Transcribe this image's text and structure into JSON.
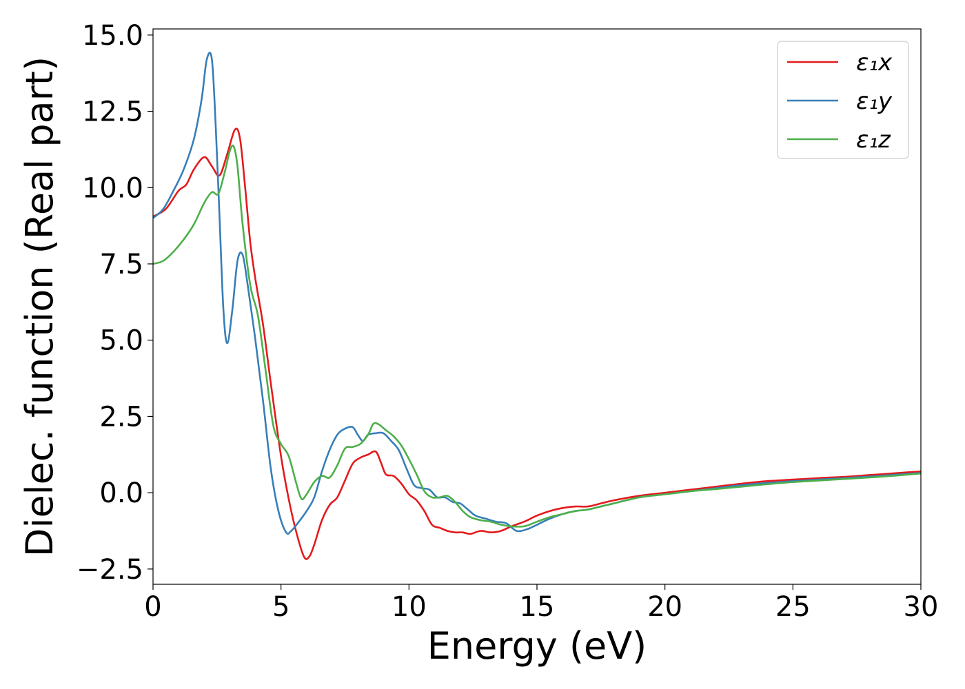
{
  "colors": {
    "x": "#e41a1c",
    "y": "#377eb8",
    "z": "#4daf4a"
  },
  "chart_data": {
    "type": "line",
    "xlabel": "Energy (eV)",
    "ylabel": "Dielec. function (Real part)",
    "xlim": [
      0,
      30
    ],
    "ylim": [
      -3.0,
      15.2
    ],
    "xticks": [
      0,
      5,
      10,
      15,
      20,
      25,
      30
    ],
    "xtick_labels": [
      "0",
      "5",
      "10",
      "15",
      "20",
      "25",
      "30"
    ],
    "yticks": [
      -2.5,
      0.0,
      2.5,
      5.0,
      7.5,
      10.0,
      12.5,
      15.0
    ],
    "ytick_labels": [
      "−2.5",
      "0.0",
      "2.5",
      "5.0",
      "7.5",
      "10.0",
      "12.5",
      "15.0"
    ],
    "grid": false,
    "legend_position": "top-right",
    "series": [
      {
        "name": "ε₁x",
        "color": "#e41a1c",
        "x": [
          0,
          0.5,
          1.0,
          1.3,
          1.6,
          2.0,
          2.3,
          2.6,
          2.9,
          3.2,
          3.4,
          3.6,
          3.8,
          4.0,
          4.3,
          4.6,
          5.0,
          5.3,
          5.6,
          5.9,
          6.1,
          6.3,
          6.6,
          6.9,
          7.2,
          7.5,
          7.8,
          8.1,
          8.4,
          8.7,
          8.9,
          9.1,
          9.4,
          9.7,
          10.0,
          10.3,
          10.6,
          10.9,
          11.2,
          11.5,
          11.8,
          12.1,
          12.4,
          12.8,
          13.2,
          13.6,
          14.0,
          14.5,
          15.0,
          15.5,
          16.0,
          16.5,
          17.0,
          17.5,
          18.0,
          19.0,
          20.0,
          21.0,
          22.0,
          23.0,
          24.0,
          25.0,
          26.0,
          27.0,
          28.0,
          29.0,
          30.0
        ],
        "y": [
          9.05,
          9.3,
          9.9,
          10.1,
          10.6,
          11.0,
          10.7,
          10.4,
          11.1,
          11.9,
          11.6,
          10.0,
          8.2,
          7.0,
          5.5,
          3.6,
          1.2,
          -0.2,
          -1.3,
          -2.1,
          -2.1,
          -1.7,
          -0.9,
          -0.4,
          -0.15,
          0.4,
          0.95,
          1.15,
          1.25,
          1.35,
          1.0,
          0.6,
          0.55,
          0.3,
          -0.05,
          -0.25,
          -0.6,
          -1.05,
          -1.15,
          -1.25,
          -1.3,
          -1.3,
          -1.35,
          -1.25,
          -1.3,
          -1.25,
          -1.1,
          -0.95,
          -0.75,
          -0.6,
          -0.5,
          -0.45,
          -0.45,
          -0.35,
          -0.25,
          -0.1,
          0.0,
          0.1,
          0.2,
          0.3,
          0.38,
          0.43,
          0.48,
          0.52,
          0.58,
          0.64,
          0.7
        ]
      },
      {
        "name": "ε₁y",
        "color": "#377eb8",
        "x": [
          0,
          0.4,
          0.8,
          1.2,
          1.6,
          1.9,
          2.1,
          2.3,
          2.45,
          2.6,
          2.75,
          2.9,
          3.1,
          3.3,
          3.5,
          3.7,
          4.0,
          4.3,
          4.6,
          4.9,
          5.2,
          5.4,
          5.7,
          6.0,
          6.3,
          6.6,
          6.9,
          7.2,
          7.5,
          7.8,
          8.0,
          8.2,
          8.4,
          8.7,
          9.0,
          9.3,
          9.6,
          9.9,
          10.2,
          10.5,
          10.8,
          11.1,
          11.4,
          11.7,
          12.0,
          12.3,
          12.6,
          13.0,
          13.4,
          13.8,
          14.2,
          14.6,
          15.0,
          15.5,
          16.0,
          16.5,
          17.0,
          17.5,
          18.0,
          19.0,
          20.0,
          21.0,
          22.0,
          23.0,
          24.0,
          25.0,
          26.0,
          27.0,
          28.0,
          29.0,
          30.0
        ],
        "y": [
          9.0,
          9.3,
          9.9,
          10.6,
          11.6,
          12.9,
          14.2,
          14.2,
          12.0,
          9.0,
          6.0,
          4.9,
          6.0,
          7.6,
          7.8,
          6.8,
          5.0,
          3.0,
          0.8,
          -0.6,
          -1.3,
          -1.25,
          -0.95,
          -0.6,
          -0.15,
          0.7,
          1.4,
          1.9,
          2.1,
          2.15,
          1.9,
          1.7,
          1.9,
          1.95,
          1.95,
          1.7,
          1.4,
          0.8,
          0.25,
          0.15,
          0.1,
          -0.15,
          -0.15,
          -0.3,
          -0.35,
          -0.55,
          -0.75,
          -0.85,
          -0.95,
          -1.0,
          -1.25,
          -1.2,
          -1.05,
          -0.85,
          -0.7,
          -0.6,
          -0.55,
          -0.45,
          -0.35,
          -0.15,
          -0.05,
          0.05,
          0.15,
          0.25,
          0.32,
          0.38,
          0.43,
          0.48,
          0.53,
          0.59,
          0.65
        ]
      },
      {
        "name": "ε₁z",
        "color": "#4daf4a",
        "x": [
          0,
          0.4,
          0.8,
          1.2,
          1.6,
          2.0,
          2.3,
          2.55,
          2.8,
          3.0,
          3.15,
          3.3,
          3.5,
          3.8,
          4.1,
          4.4,
          4.7,
          5.0,
          5.3,
          5.6,
          5.8,
          6.0,
          6.3,
          6.6,
          6.9,
          7.2,
          7.5,
          7.8,
          8.1,
          8.4,
          8.6,
          8.8,
          9.1,
          9.4,
          9.7,
          10.0,
          10.3,
          10.6,
          10.9,
          11.2,
          11.5,
          11.8,
          12.1,
          12.4,
          12.8,
          13.2,
          13.6,
          14.0,
          14.5,
          15.0,
          15.5,
          16.0,
          16.5,
          17.0,
          17.5,
          18.0,
          19.0,
          20.0,
          21.0,
          22.0,
          23.0,
          24.0,
          25.0,
          26.0,
          27.0,
          28.0,
          29.0,
          30.0
        ],
        "y": [
          7.5,
          7.6,
          7.9,
          8.3,
          8.8,
          9.5,
          9.85,
          9.8,
          10.5,
          11.2,
          11.35,
          10.7,
          8.8,
          6.8,
          5.8,
          4.0,
          2.2,
          1.6,
          1.2,
          0.3,
          -0.2,
          -0.05,
          0.35,
          0.55,
          0.5,
          0.9,
          1.45,
          1.5,
          1.6,
          1.9,
          2.25,
          2.25,
          2.05,
          1.85,
          1.55,
          1.1,
          0.6,
          0.05,
          -0.15,
          -0.15,
          -0.1,
          -0.3,
          -0.6,
          -0.8,
          -0.9,
          -0.95,
          -1.05,
          -1.1,
          -1.1,
          -0.95,
          -0.8,
          -0.7,
          -0.6,
          -0.55,
          -0.45,
          -0.35,
          -0.15,
          -0.05,
          0.05,
          0.12,
          0.2,
          0.28,
          0.35,
          0.4,
          0.45,
          0.5,
          0.56,
          0.63
        ]
      }
    ]
  }
}
